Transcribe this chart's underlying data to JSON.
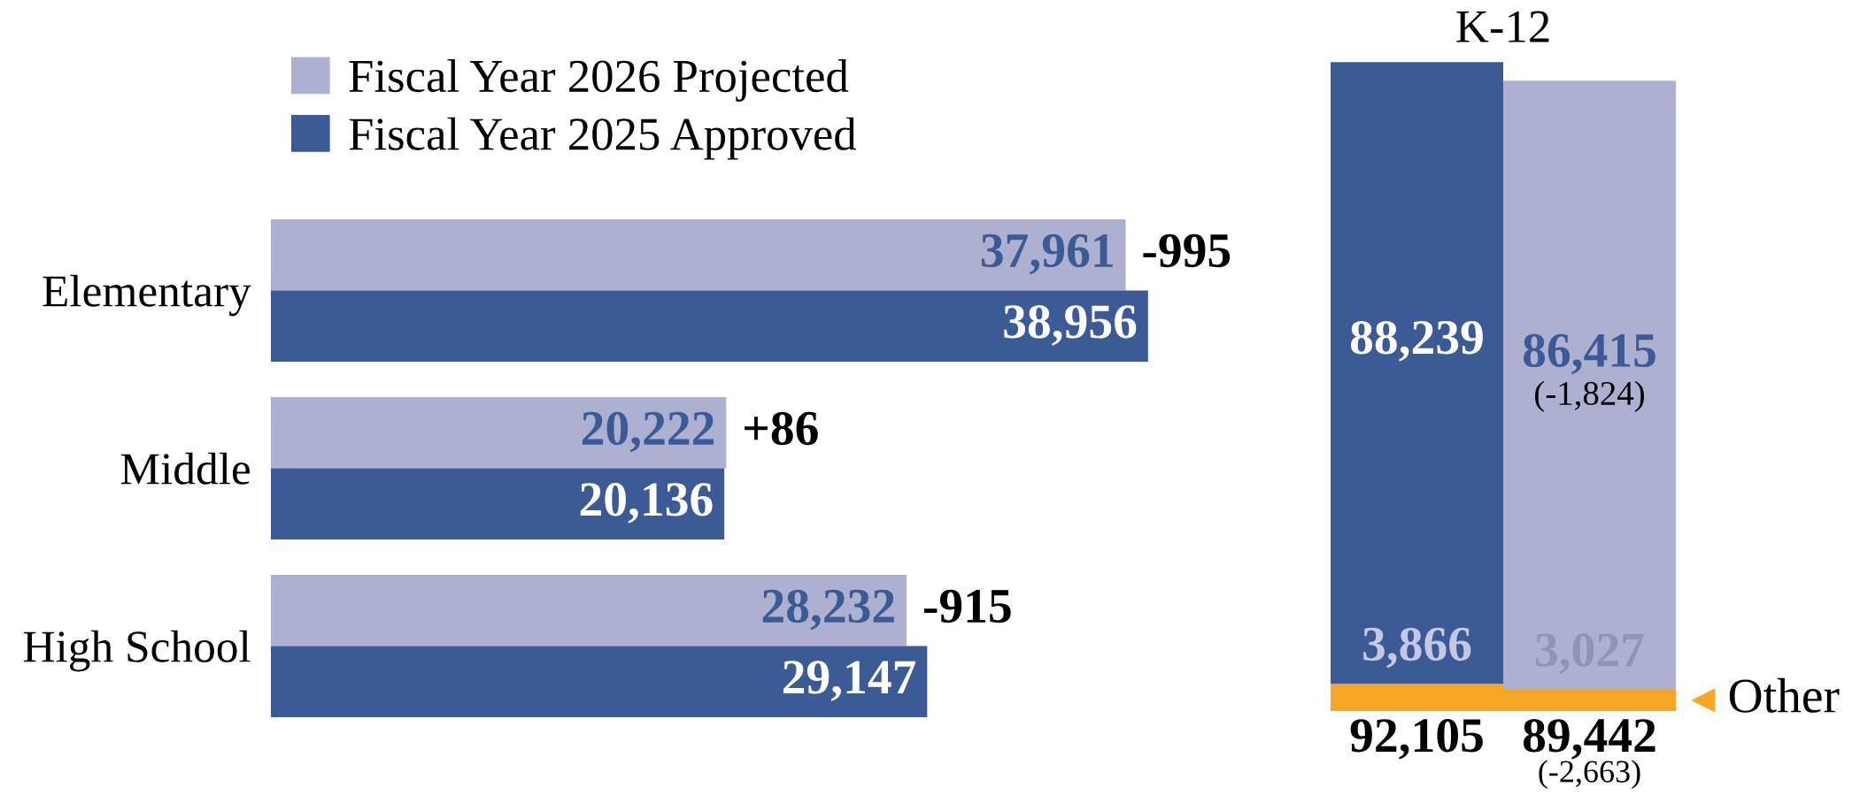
{
  "chart_data": [
    {
      "type": "bar",
      "orientation": "horizontal",
      "categories": [
        "Elementary",
        "Middle",
        "High School"
      ],
      "series": [
        {
          "name": "Fiscal Year 2026 Projected",
          "color": "#adb0d0",
          "values": [
            37961,
            20222,
            28232
          ],
          "value_labels": [
            "37,961",
            "20,222",
            "28,232"
          ]
        },
        {
          "name": "Fiscal Year 2025 Approved",
          "color": "#3c5a96",
          "values": [
            38956,
            20136,
            29147
          ],
          "value_labels": [
            "38,956",
            "20,136",
            "29,147"
          ]
        }
      ],
      "legend": "top left",
      "tick_labels": "y",
      "grid": false,
      "annotations": [
        {
          "text": "-995",
          "x": 37961,
          "y": "Elementary"
        },
        {
          "text": "+86",
          "x": 20222,
          "y": "Middle"
        },
        {
          "text": "-915",
          "x": 28232,
          "y": "High School"
        }
      ]
    },
    {
      "type": "bar",
      "stacked": true,
      "title": "K-12",
      "categories": [
        null,
        null
      ],
      "series": [
        {
          "name": "Other",
          "color": "#f6a623",
          "values": [
            3866,
            3027
          ],
          "value_labels": [
            "3,866",
            "3,027"
          ]
        },
        {
          "colors": [
            "#3c5a96",
            "#adb0d0"
          ],
          "values": [
            88239,
            86415
          ],
          "value_labels": [
            "88,239",
            "86,415\n(-1,824)"
          ]
        }
      ],
      "ylim": [
        0,
        92500
      ],
      "totals": [
        "92,105",
        "89,442\n(-2,663)"
      ],
      "tick_labels": false,
      "grid": false
    }
  ]
}
